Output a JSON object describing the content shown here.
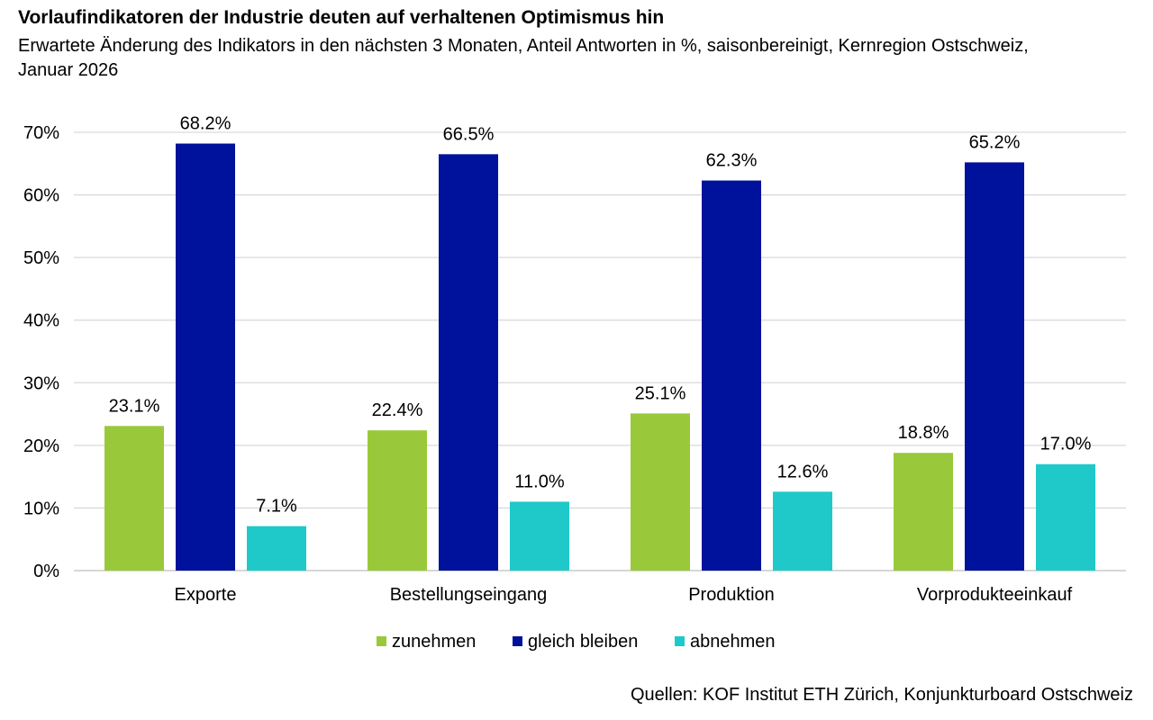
{
  "title": "Vorlaufindikatoren der Industrie deuten auf verhaltenen Optimismus hin",
  "subtitle": "Erwartete Änderung des Indikators in den nächsten 3 Monaten, Anteil Antworten in %, saisonbereinigt, Kernregion Ostschweiz, Januar 2026",
  "source": "Quellen: KOF Institut ETH Zürich, Konjunkturboard Ostschweiz",
  "chart_data": {
    "type": "bar",
    "categories": [
      "Exporte",
      "Bestellungseingang",
      "Produktion",
      "Vorprodukteeinkauf"
    ],
    "series": [
      {
        "name": "zunehmen",
        "color": "#99c93b",
        "values": [
          23.1,
          22.4,
          25.1,
          18.8
        ],
        "labels": [
          "23.1%",
          "22.4%",
          "25.1%",
          "18.8%"
        ]
      },
      {
        "name": "gleich bleiben",
        "color": "#00129b",
        "values": [
          68.2,
          66.5,
          62.3,
          65.2
        ],
        "labels": [
          "68.2%",
          "66.5%",
          "62.3%",
          "65.2%"
        ]
      },
      {
        "name": "abnehmen",
        "color": "#1fc9c9",
        "values": [
          7.1,
          11.0,
          12.6,
          17.0
        ],
        "labels": [
          "7.1%",
          "11.0%",
          "12.6%",
          "17.0%"
        ]
      }
    ],
    "ylim": [
      0,
      70
    ],
    "yticks": [
      0,
      10,
      20,
      30,
      40,
      50,
      60,
      70
    ],
    "ytick_labels": [
      "0%",
      "10%",
      "20%",
      "30%",
      "40%",
      "50%",
      "60%",
      "70%"
    ],
    "xlabel": "",
    "ylabel": "",
    "grid": true,
    "legend_position": "bottom"
  }
}
